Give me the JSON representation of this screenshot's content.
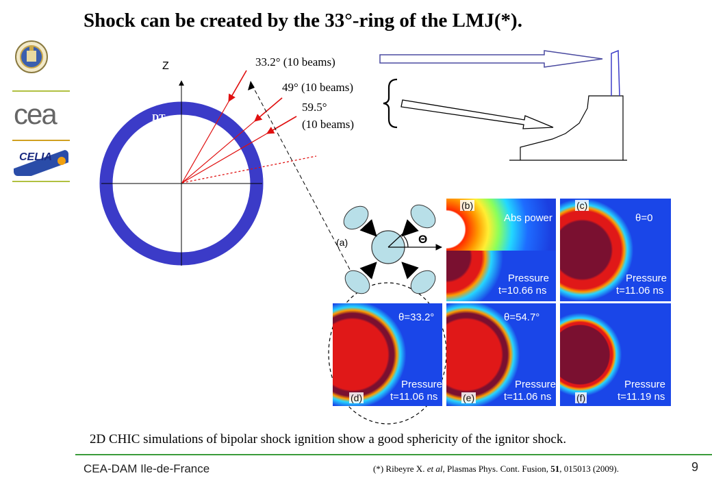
{
  "title": "Shock can be created by the 33°-ring of the LMJ(*).",
  "diagram": {
    "axis_label": "Z",
    "target_label": "DT",
    "beams": [
      {
        "label": "33.2° (10 beams)"
      },
      {
        "label": "49° (10 beams)"
      },
      {
        "label_line1": "59.5°",
        "label_line2": "(10 beams)"
      }
    ]
  },
  "panels": [
    {
      "tag": "(b)",
      "text1": "Abs power",
      "text2": "Pressure",
      "text3": "t=10.66 ns"
    },
    {
      "tag": "(c)",
      "text1": "θ=0",
      "text2": "Pressure",
      "text3": "t=11.06 ns"
    },
    {
      "tag": "(d)",
      "text1": "θ=33.2°",
      "text2": "Pressure",
      "text3": "t=11.06 ns"
    },
    {
      "tag": "(e)",
      "text1": "θ=54.7°",
      "text2": "Pressure",
      "text3": "t=11.06 ns"
    },
    {
      "tag": "(f)",
      "text1": "",
      "text2": "Pressure",
      "text3": "t=11.19 ns"
    }
  ],
  "schematic": {
    "tag": "(a)",
    "angle_symbol": "Θ"
  },
  "caption": "2D CHIC simulations of bipolar shock ignition show a good sphericity of the ignitor shock.",
  "footer": {
    "org": "CEA-DAM Ile-de-France",
    "ref_prefix": "(*) Ribeyre X. ",
    "ref_etal": "et al",
    "ref_mid": ", Plasmas Phys. Cont. Fusion, ",
    "ref_vol": "51",
    "ref_suffix": ", 015013 (2009).",
    "page": "9"
  },
  "logos": {
    "cea": "cea",
    "celia": "CELIA"
  },
  "colors": {
    "ring": "#3b3bc8",
    "beam": "#e01010",
    "arrow_outline": "#4a4aa0",
    "rule": "#3a9b3a"
  }
}
